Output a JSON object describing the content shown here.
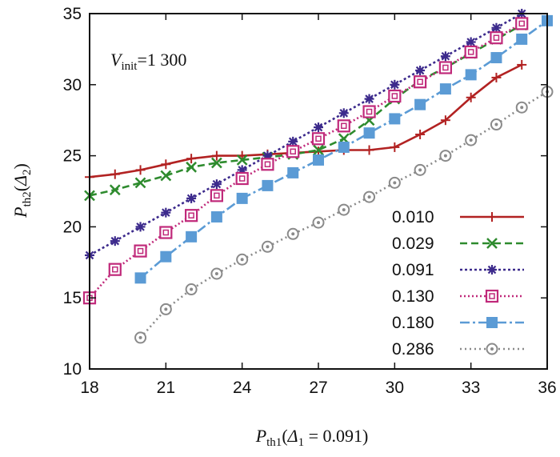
{
  "chart_data": {
    "type": "line",
    "title": "",
    "annotation": {
      "var": "V",
      "sub": "init",
      "rest": "=1 300"
    },
    "xlabel": {
      "var": "P",
      "sub": "th1",
      "paren_open": "(",
      "delta": "Δ",
      "delta_sub": "1",
      "rest": " = 0.091)"
    },
    "ylabel": {
      "var": "P",
      "sub": "th2",
      "paren_open": "(",
      "delta": "Δ",
      "delta_sub": "2",
      "rest": ")"
    },
    "xlim": [
      18,
      36
    ],
    "ylim": [
      10,
      35
    ],
    "xticks": [
      18,
      21,
      24,
      27,
      30,
      33,
      36
    ],
    "yticks": [
      10,
      15,
      20,
      25,
      30,
      35
    ],
    "legend_position": "bottom-right",
    "series": [
      {
        "name": "0.010",
        "color": "#b22222",
        "dash": "",
        "marker": "plus",
        "x": [
          18,
          19,
          20,
          21,
          22,
          23,
          24,
          25,
          26,
          27,
          28,
          29,
          30,
          31,
          32,
          33,
          34,
          35
        ],
        "y": [
          23.5,
          23.7,
          24.0,
          24.4,
          24.8,
          25.0,
          25.0,
          25.1,
          25.2,
          25.3,
          25.4,
          25.4,
          25.6,
          26.5,
          27.5,
          29.1,
          30.5,
          31.4
        ]
      },
      {
        "name": "0.029",
        "color": "#2e8b2e",
        "dash": "9,5",
        "marker": "x",
        "x": [
          18,
          19,
          20,
          21,
          22,
          23,
          24,
          25,
          26,
          27,
          28,
          29,
          30,
          31,
          32,
          33,
          34,
          35
        ],
        "y": [
          22.2,
          22.6,
          23.1,
          23.6,
          24.2,
          24.5,
          24.7,
          24.9,
          25.1,
          25.4,
          26.2,
          27.5,
          29.0,
          30.3,
          31.2,
          32.2,
          33.2,
          34.2
        ]
      },
      {
        "name": "0.091",
        "color": "#3c2a8c",
        "dash": "3,3",
        "marker": "star",
        "x": [
          18,
          19,
          20,
          21,
          22,
          23,
          24,
          25,
          26,
          27,
          28,
          29,
          30,
          31,
          32,
          33,
          34,
          35
        ],
        "y": [
          18.0,
          19.0,
          20.0,
          21.0,
          22.0,
          23.0,
          24.0,
          25.0,
          26.0,
          27.0,
          28.0,
          29.0,
          30.0,
          31.0,
          32.0,
          33.0,
          34.0,
          35.0
        ]
      },
      {
        "name": "0.130",
        "color": "#c0297a",
        "dash": "2,3",
        "marker": "square-open",
        "x": [
          18,
          19,
          20,
          21,
          22,
          23,
          24,
          25,
          26,
          27,
          28,
          29,
          30,
          31,
          32,
          33,
          34,
          35
        ],
        "y": [
          15.0,
          17.0,
          18.3,
          19.6,
          20.8,
          22.2,
          23.4,
          24.4,
          25.3,
          26.2,
          27.1,
          28.1,
          29.2,
          30.2,
          31.2,
          32.3,
          33.3,
          34.3
        ]
      },
      {
        "name": "0.180",
        "color": "#5b9bd5",
        "dash": "12,4,3,4",
        "marker": "square-filled",
        "x": [
          20,
          21,
          22,
          23,
          24,
          25,
          26,
          27,
          28,
          29,
          30,
          31,
          32,
          33,
          34,
          35,
          36
        ],
        "y": [
          16.4,
          17.9,
          19.3,
          20.7,
          22.0,
          22.9,
          23.8,
          24.7,
          25.6,
          26.6,
          27.6,
          28.6,
          29.7,
          30.7,
          31.9,
          33.2,
          34.5
        ]
      },
      {
        "name": "0.286",
        "color": "#8a8a8a",
        "dash": "2,4",
        "marker": "circle-dot",
        "x": [
          20,
          21,
          22,
          23,
          24,
          25,
          26,
          27,
          28,
          29,
          30,
          31,
          32,
          33,
          34,
          35,
          36
        ],
        "y": [
          12.2,
          14.2,
          15.6,
          16.7,
          17.7,
          18.6,
          19.5,
          20.3,
          21.2,
          22.1,
          23.1,
          24.0,
          25.0,
          26.1,
          27.2,
          28.4,
          29.5
        ]
      }
    ]
  }
}
